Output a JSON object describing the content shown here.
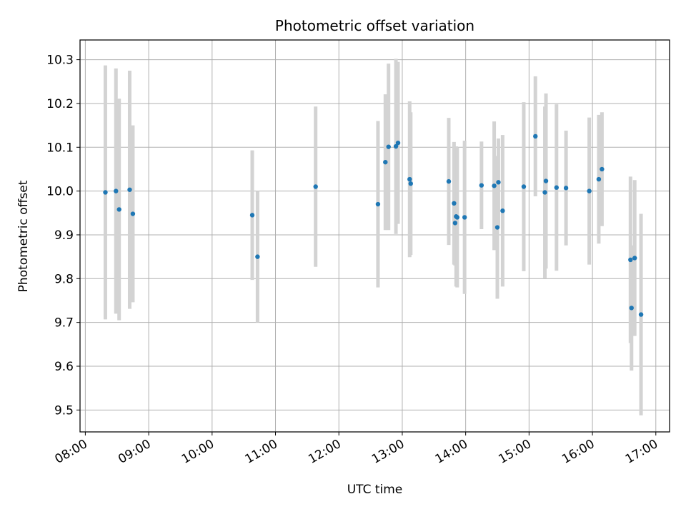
{
  "chart_data": {
    "type": "scatter",
    "title": "Photometric offset variation",
    "xlabel": "UTC time",
    "ylabel": "Photometric offset",
    "x_axis_type": "time",
    "x_ticks": [
      "08:00",
      "09:00",
      "10:00",
      "11:00",
      "12:00",
      "13:00",
      "14:00",
      "15:00",
      "16:00",
      "17:00"
    ],
    "y_ticks": [
      9.5,
      9.6,
      9.7,
      9.8,
      9.9,
      10.0,
      10.1,
      10.2,
      10.3
    ],
    "xlim": [
      "07:55",
      "17:13"
    ],
    "ylim": [
      9.45,
      10.345
    ],
    "grid": true,
    "point_color": "#1f77b4",
    "errorbar_color": "#d3d3d3",
    "points": [
      {
        "x": "08:19",
        "y": 9.997,
        "err": 0.29
      },
      {
        "x": "08:29",
        "y": 10.0,
        "err": 0.28
      },
      {
        "x": "08:32",
        "y": 9.958,
        "err": 0.253
      },
      {
        "x": "08:42",
        "y": 10.003,
        "err": 0.272
      },
      {
        "x": "08:45",
        "y": 9.948,
        "err": 0.202
      },
      {
        "x": "10:38",
        "y": 9.945,
        "err": 0.148
      },
      {
        "x": "10:43",
        "y": 9.85,
        "err": 0.15
      },
      {
        "x": "11:38",
        "y": 10.01,
        "err": 0.183
      },
      {
        "x": "12:37",
        "y": 9.97,
        "err": 0.19
      },
      {
        "x": "12:44",
        "y": 10.066,
        "err": 0.155
      },
      {
        "x": "12:47",
        "y": 10.101,
        "err": 0.19
      },
      {
        "x": "12:54",
        "y": 10.102,
        "err": 0.2
      },
      {
        "x": "12:56",
        "y": 10.11,
        "err": 0.185
      },
      {
        "x": "13:07",
        "y": 10.027,
        "err": 0.178
      },
      {
        "x": "13:08",
        "y": 10.017,
        "err": 0.163
      },
      {
        "x": "13:44",
        "y": 10.022,
        "err": 0.145
      },
      {
        "x": "13:49",
        "y": 9.972,
        "err": 0.14
      },
      {
        "x": "13:50",
        "y": 9.927,
        "err": 0.097
      },
      {
        "x": "13:51",
        "y": 9.942,
        "err": 0.16
      },
      {
        "x": "13:52",
        "y": 9.94,
        "err": 0.16
      },
      {
        "x": "13:59",
        "y": 9.94,
        "err": 0.175
      },
      {
        "x": "14:15",
        "y": 10.013,
        "err": 0.1
      },
      {
        "x": "14:27",
        "y": 10.012,
        "err": 0.147
      },
      {
        "x": "14:30",
        "y": 9.917,
        "err": 0.163
      },
      {
        "x": "14:31",
        "y": 10.02,
        "err": 0.1
      },
      {
        "x": "14:35",
        "y": 9.955,
        "err": 0.173
      },
      {
        "x": "14:55",
        "y": 10.01,
        "err": 0.193
      },
      {
        "x": "15:06",
        "y": 10.125,
        "err": 0.137
      },
      {
        "x": "15:15",
        "y": 9.997,
        "err": 0.196
      },
      {
        "x": "15:16",
        "y": 10.023,
        "err": 0.2
      },
      {
        "x": "15:26",
        "y": 10.008,
        "err": 0.19
      },
      {
        "x": "15:35",
        "y": 10.007,
        "err": 0.131
      },
      {
        "x": "15:57",
        "y": 10.0,
        "err": 0.168
      },
      {
        "x": "16:06",
        "y": 10.027,
        "err": 0.147
      },
      {
        "x": "16:09",
        "y": 10.05,
        "err": 0.13
      },
      {
        "x": "16:36",
        "y": 9.843,
        "err": 0.19
      },
      {
        "x": "16:37",
        "y": 9.733,
        "err": 0.143
      },
      {
        "x": "16:40",
        "y": 9.847,
        "err": 0.178
      },
      {
        "x": "16:46",
        "y": 9.718,
        "err": 0.23
      }
    ]
  }
}
